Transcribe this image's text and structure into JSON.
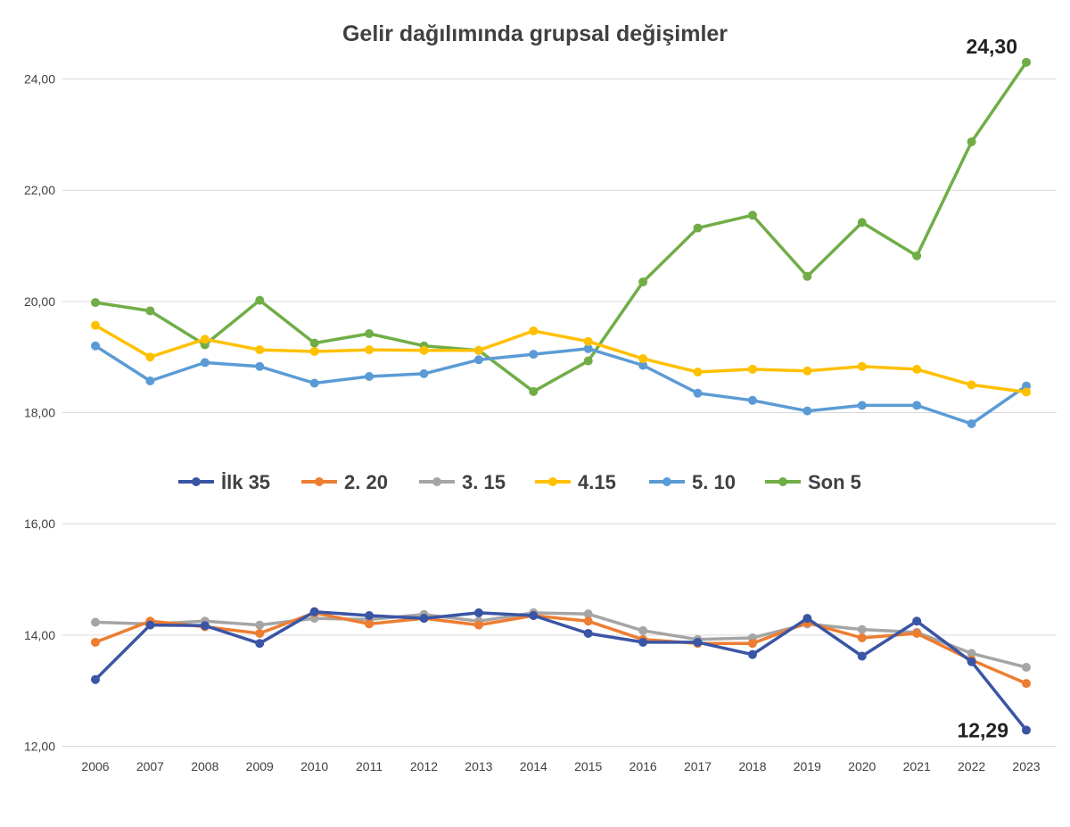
{
  "chart_data": {
    "type": "line",
    "title": "Gelir dağılımında  grupsal  değişimler",
    "categories": [
      "2006",
      "2007",
      "2008",
      "2009",
      "2010",
      "2011",
      "2012",
      "2013",
      "2014",
      "2015",
      "2016",
      "2017",
      "2018",
      "2019",
      "2020",
      "2021",
      "2022",
      "2023"
    ],
    "y_ticks": [
      "12,00",
      "14,00",
      "16,00",
      "18,00",
      "20,00",
      "22,00",
      "24,00"
    ],
    "ylim": [
      12,
      25.2
    ],
    "grid": true,
    "legend_placement": "center",
    "series": [
      {
        "name": "İlk 35",
        "color": "#3a55a5",
        "values": [
          13.2,
          14.18,
          14.17,
          13.85,
          14.42,
          14.35,
          14.3,
          14.4,
          14.35,
          14.03,
          13.87,
          13.87,
          13.65,
          14.3,
          13.62,
          14.25,
          13.52,
          12.29
        ]
      },
      {
        "name": "2. 20",
        "color": "#ed7d31",
        "values": [
          13.87,
          14.25,
          14.15,
          14.03,
          14.4,
          14.2,
          14.3,
          14.18,
          14.35,
          14.25,
          13.92,
          13.85,
          13.85,
          14.22,
          13.95,
          14.03,
          13.55,
          13.13
        ]
      },
      {
        "name": "3. 15",
        "color": "#a5a5a5",
        "values": [
          14.23,
          14.2,
          14.25,
          14.18,
          14.3,
          14.28,
          14.37,
          14.25,
          14.4,
          14.38,
          14.08,
          13.92,
          13.95,
          14.2,
          14.1,
          14.05,
          13.67,
          13.42
        ]
      },
      {
        "name": "4.15",
        "color": "#ffc000",
        "values": [
          19.57,
          19.0,
          19.32,
          19.13,
          19.1,
          19.13,
          19.12,
          19.12,
          19.47,
          19.28,
          18.97,
          18.73,
          18.78,
          18.75,
          18.83,
          18.78,
          18.5,
          18.37
        ]
      },
      {
        "name": "5. 10",
        "color": "#5b9bd5",
        "values": [
          19.2,
          18.57,
          18.9,
          18.83,
          18.53,
          18.65,
          18.7,
          18.95,
          19.05,
          19.15,
          18.85,
          18.35,
          18.22,
          18.03,
          18.13,
          18.13,
          17.8,
          18.48
        ]
      },
      {
        "name": "Son 5",
        "color": "#70ad47",
        "values": [
          19.98,
          19.83,
          19.22,
          20.02,
          19.25,
          19.42,
          19.2,
          19.12,
          18.38,
          18.93,
          20.35,
          21.32,
          21.55,
          20.45,
          21.42,
          20.82,
          22.87,
          24.3
        ]
      }
    ],
    "annotations": [
      {
        "text": "24,30",
        "series": "Son 5",
        "category": "2023"
      },
      {
        "text": "12,29",
        "series": "İlk 35",
        "category": "2023"
      }
    ]
  }
}
